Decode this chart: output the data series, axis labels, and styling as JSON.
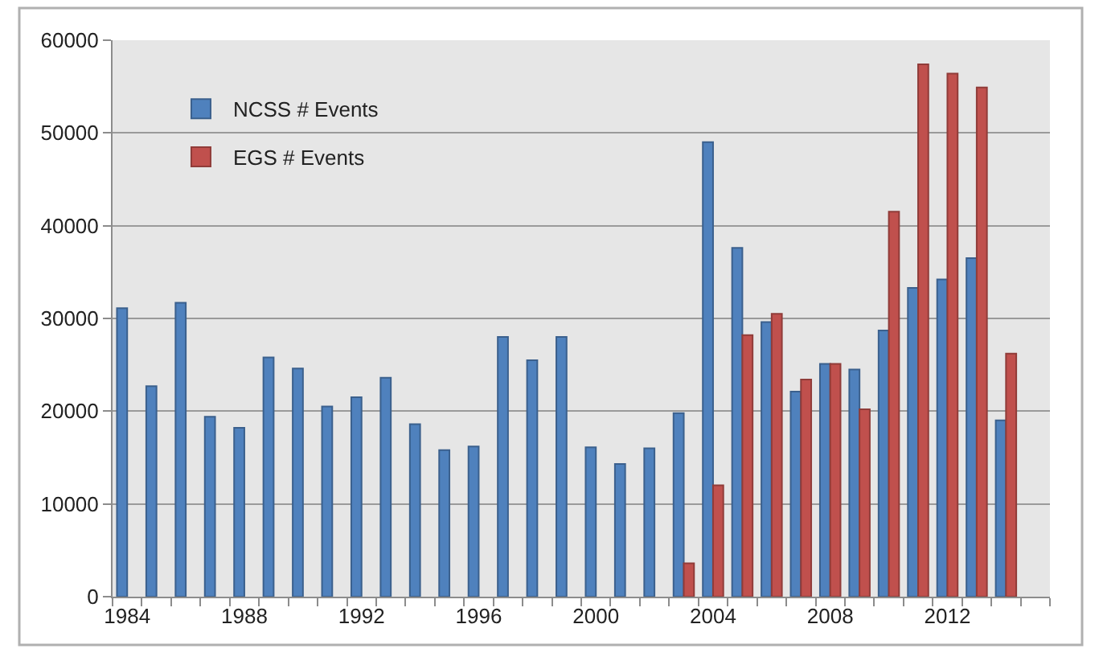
{
  "chart_data": {
    "type": "bar",
    "x": [
      1984,
      1985,
      1986,
      1987,
      1988,
      1989,
      1990,
      1991,
      1992,
      1993,
      1994,
      1995,
      1996,
      1997,
      1998,
      1999,
      2000,
      2001,
      2002,
      2003,
      2004,
      2005,
      2006,
      2007,
      2008,
      2009,
      2010,
      2011,
      2012,
      2013,
      2014
    ],
    "xlim": [
      1983.5,
      2015.5
    ],
    "xticks": [
      1984,
      1988,
      1992,
      1996,
      2000,
      2004,
      2008,
      2012
    ],
    "ylim": [
      0,
      60000
    ],
    "yticks": [
      0,
      10000,
      20000,
      30000,
      40000,
      50000,
      60000
    ],
    "grid": "y",
    "legend": "top left",
    "series": [
      {
        "name": "NCSS # Events",
        "color": "#4f81bd",
        "values": [
          31100,
          22700,
          31700,
          19400,
          18200,
          25800,
          24600,
          20500,
          21500,
          23600,
          18600,
          15800,
          16200,
          28000,
          25500,
          28000,
          16100,
          14300,
          16000,
          19800,
          49000,
          37600,
          29600,
          22100,
          25100,
          24500,
          28700,
          33300,
          34200,
          36500,
          19000
        ]
      },
      {
        "name": "EGS # Events",
        "color": "#c0504d",
        "values": [
          null,
          null,
          null,
          null,
          null,
          null,
          null,
          null,
          null,
          null,
          null,
          null,
          null,
          null,
          null,
          null,
          null,
          null,
          null,
          3600,
          12000,
          28200,
          30500,
          23400,
          25100,
          20200,
          41500,
          57400,
          56400,
          54900,
          26200
        ]
      }
    ]
  }
}
